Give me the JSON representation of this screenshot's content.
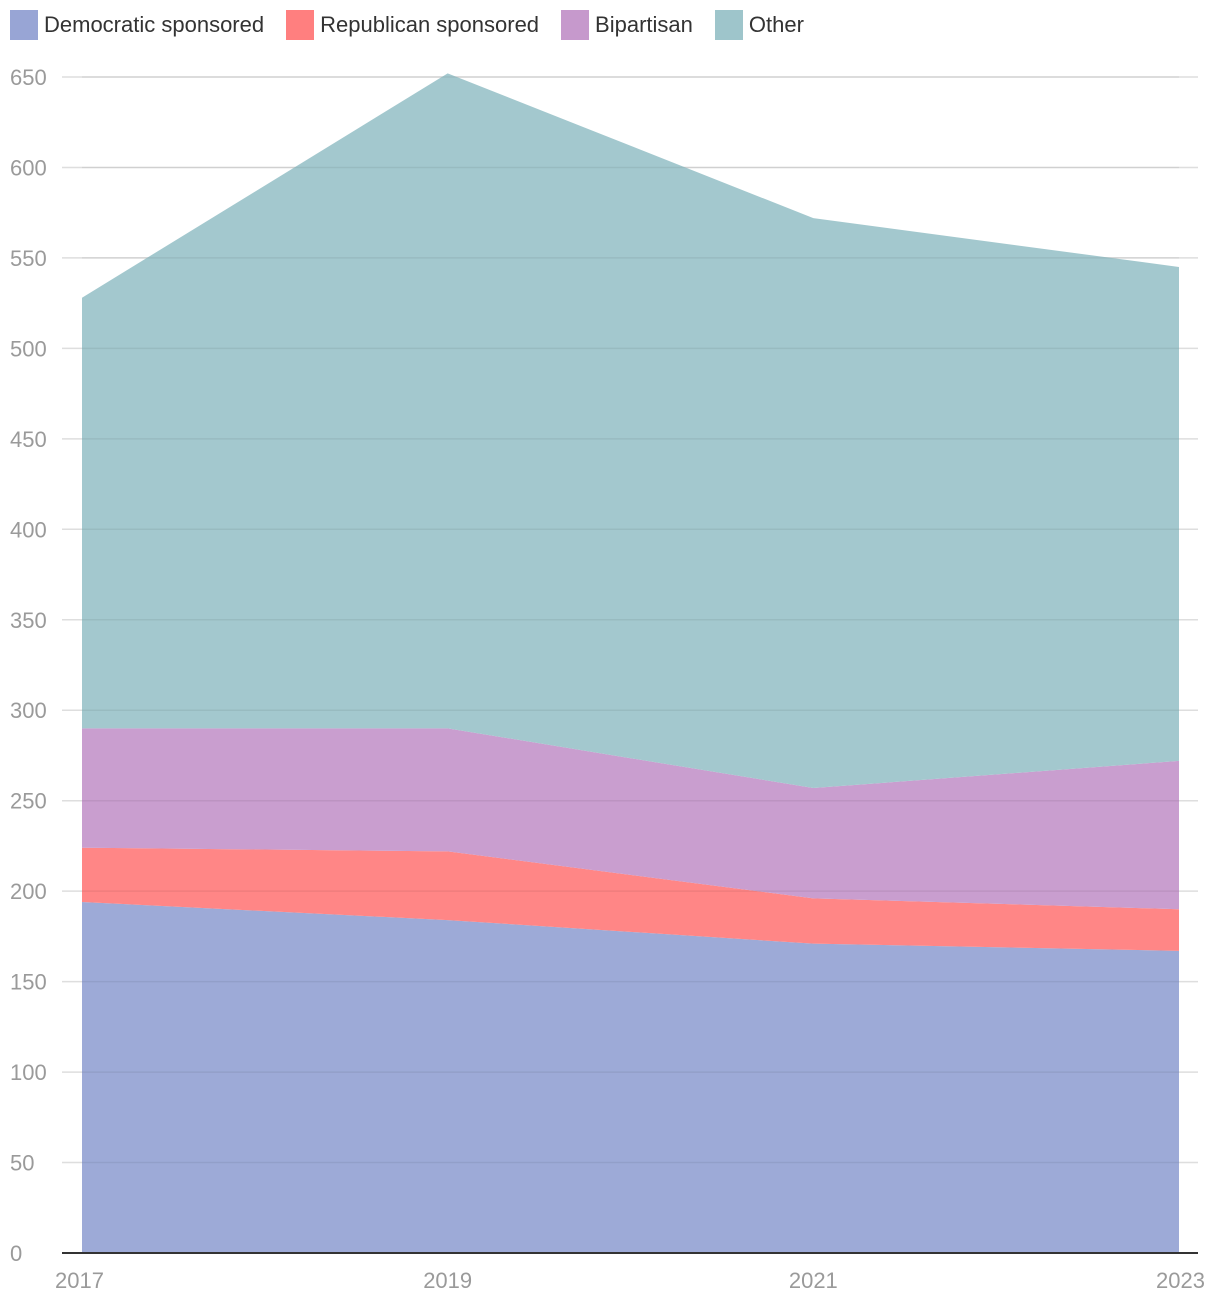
{
  "chart_data": {
    "type": "area",
    "stacked": true,
    "title": "",
    "xlabel": "",
    "ylabel": "",
    "x": [
      "2017",
      "2019",
      "2021",
      "2023"
    ],
    "ylim": [
      0,
      650
    ],
    "yticks": [
      0,
      50,
      100,
      150,
      200,
      250,
      300,
      350,
      400,
      450,
      500,
      550,
      600,
      650
    ],
    "grid": true,
    "legend_position": "top-left",
    "series": [
      {
        "name": "Democratic sponsored",
        "values": [
          194,
          184,
          171,
          167
        ],
        "color": "#98a5d5"
      },
      {
        "name": "Republican sponsored",
        "values": [
          30,
          38,
          25,
          23
        ],
        "color": "#ff7f7f"
      },
      {
        "name": "Bipartisan",
        "values": [
          66,
          68,
          61,
          82
        ],
        "color": "#c699cc"
      },
      {
        "name": "Other",
        "values": [
          238,
          362,
          315,
          273
        ],
        "color": "#9ec5cb"
      }
    ]
  }
}
